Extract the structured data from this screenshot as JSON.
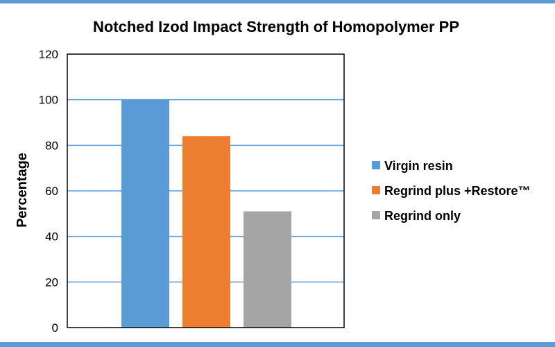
{
  "colors": {
    "frame_bar": "#5b9bd5",
    "axis": "#000000",
    "gridline": "#5b9bd5"
  },
  "chart_data": {
    "type": "bar",
    "title": "Notched Izod Impact Strength of Homopolymer PP",
    "xlabel": "",
    "ylabel": "Percentage",
    "ylim": [
      0,
      120
    ],
    "yticks": [
      0,
      20,
      40,
      60,
      80,
      100,
      120
    ],
    "grid": true,
    "legend_position": "right",
    "series": [
      {
        "name": "Virgin resin",
        "value": 100,
        "color": "#5b9bd5"
      },
      {
        "name": "Regrind plus +Restore™",
        "value": 84,
        "color": "#ed7d31"
      },
      {
        "name": "Regrind only",
        "value": 51,
        "color": "#a5a5a5"
      }
    ]
  }
}
